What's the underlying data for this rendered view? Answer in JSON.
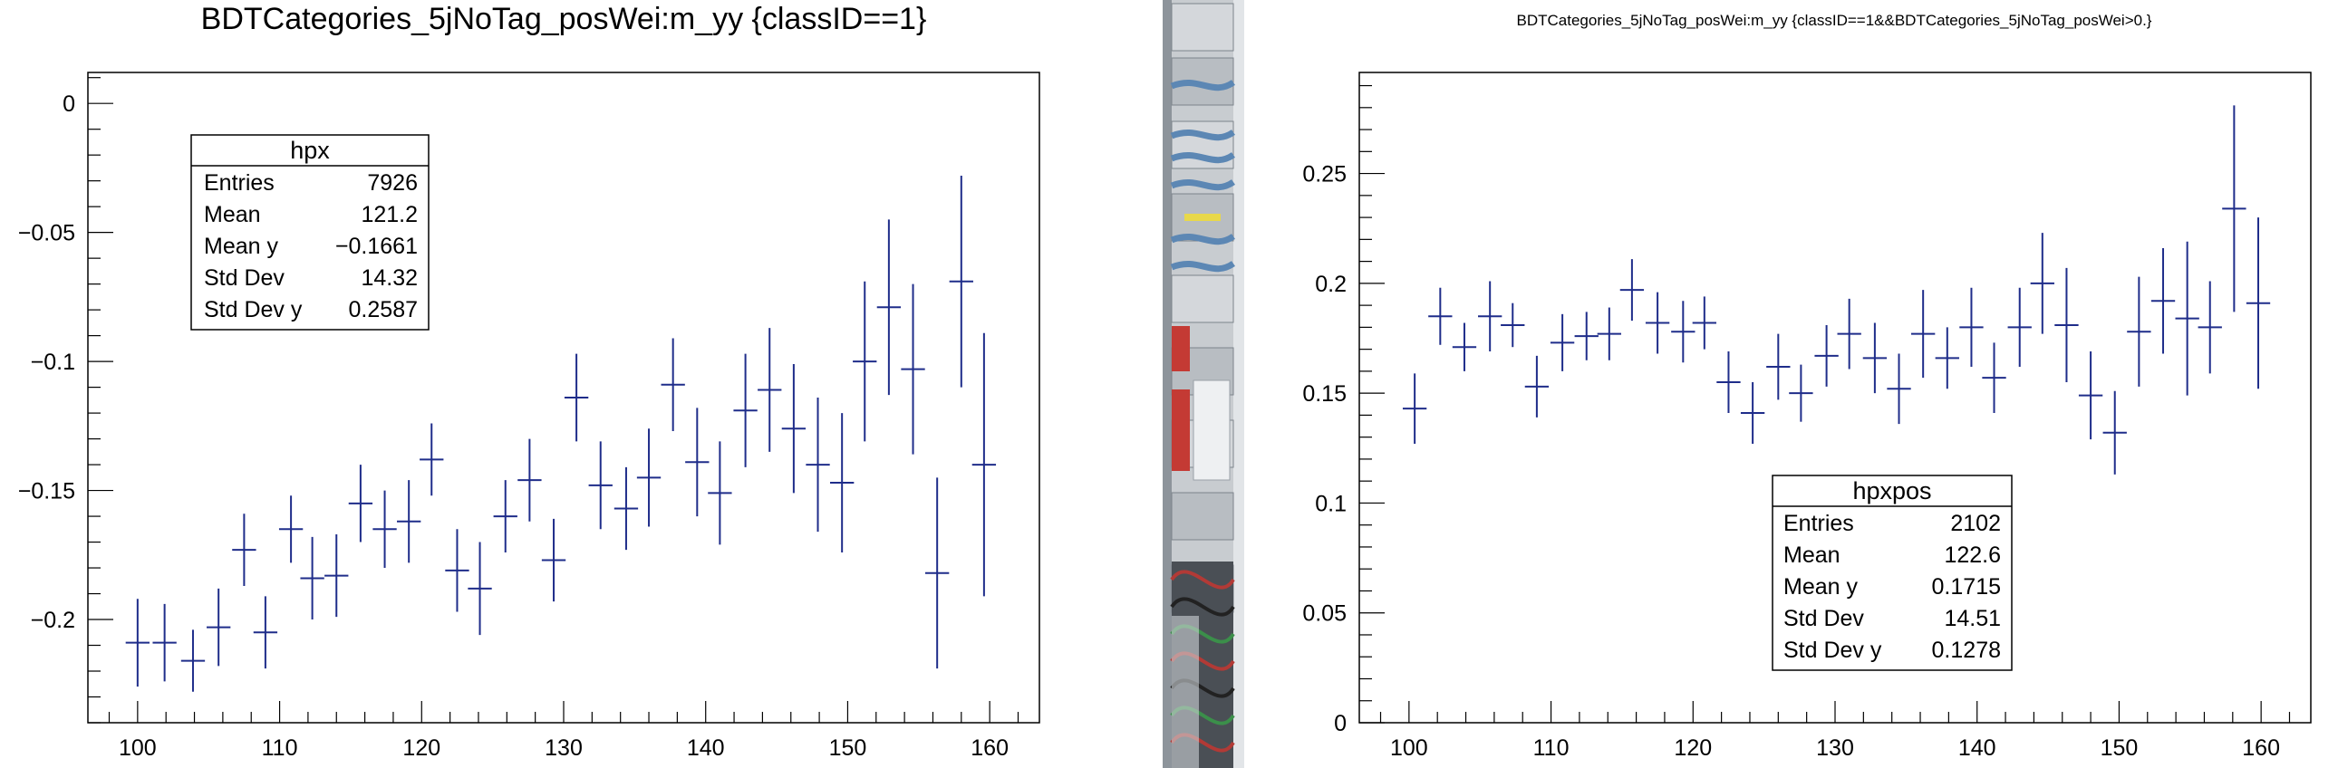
{
  "chart_data": [
    {
      "type": "scatter",
      "title": "BDTCategories_5jNoTag_posWei:m_yy {classID==1}",
      "xlabel": "",
      "ylabel": "",
      "xlim": [
        96.5,
        163.5
      ],
      "ylim": [
        -0.24,
        0.012
      ],
      "xticks": [
        100,
        110,
        120,
        130,
        140,
        150,
        160
      ],
      "yticks": [
        0,
        -0.05,
        -0.1,
        -0.15,
        -0.2
      ],
      "ytick_labels": [
        "0",
        "−0.05",
        "−0.1",
        "−0.15",
        "−0.2"
      ],
      "grid": false,
      "color": "#1f2d8a",
      "x_half_width": 0.84,
      "points": [
        [
          100.0,
          -0.209,
          0.017
        ],
        [
          101.9,
          -0.209,
          0.015
        ],
        [
          103.9,
          -0.216,
          0.012
        ],
        [
          105.7,
          -0.203,
          0.015
        ],
        [
          107.5,
          -0.173,
          0.014
        ],
        [
          109.0,
          -0.205,
          0.014
        ],
        [
          110.8,
          -0.165,
          0.013
        ],
        [
          112.3,
          -0.184,
          0.016
        ],
        [
          114.0,
          -0.183,
          0.016
        ],
        [
          115.7,
          -0.155,
          0.015
        ],
        [
          117.4,
          -0.165,
          0.015
        ],
        [
          119.1,
          -0.162,
          0.016
        ],
        [
          120.7,
          -0.138,
          0.014
        ],
        [
          122.5,
          -0.181,
          0.016
        ],
        [
          124.1,
          -0.188,
          0.018
        ],
        [
          125.9,
          -0.16,
          0.014
        ],
        [
          127.6,
          -0.146,
          0.016
        ],
        [
          129.3,
          -0.177,
          0.016
        ],
        [
          130.9,
          -0.114,
          0.017
        ],
        [
          132.6,
          -0.148,
          0.017
        ],
        [
          134.4,
          -0.157,
          0.016
        ],
        [
          136.0,
          -0.145,
          0.019
        ],
        [
          137.7,
          -0.109,
          0.018
        ],
        [
          139.4,
          -0.139,
          0.021
        ],
        [
          141.0,
          -0.151,
          0.02
        ],
        [
          142.8,
          -0.119,
          0.022
        ],
        [
          144.5,
          -0.111,
          0.024
        ],
        [
          146.2,
          -0.126,
          0.025
        ],
        [
          147.9,
          -0.14,
          0.026
        ],
        [
          149.6,
          -0.147,
          0.027
        ],
        [
          151.2,
          -0.1,
          0.031
        ],
        [
          152.9,
          -0.079,
          0.034
        ],
        [
          154.6,
          -0.103,
          0.033
        ],
        [
          156.3,
          -0.182,
          0.037
        ],
        [
          158.0,
          -0.069,
          0.041
        ],
        [
          159.6,
          -0.14,
          0.051
        ]
      ],
      "stats": {
        "name": "hpx",
        "rows": [
          {
            "label": "Entries",
            "value": "7926"
          },
          {
            "label": "Mean",
            "value": "121.2"
          },
          {
            "label": "Mean y",
            "value": "−0.1661"
          },
          {
            "label": "Std Dev",
            "value": "14.32"
          },
          {
            "label": "Std Dev y",
            "value": "0.2587"
          }
        ]
      }
    },
    {
      "type": "scatter",
      "title": "BDTCategories_5jNoTag_posWei:m_yy {classID==1&&BDTCategories_5jNoTag_posWei>0.}",
      "xlabel": "",
      "ylabel": "",
      "xlim": [
        96.5,
        163.5
      ],
      "ylim": [
        0,
        0.296
      ],
      "xticks": [
        100,
        110,
        120,
        130,
        140,
        150,
        160
      ],
      "yticks": [
        0,
        0.05,
        0.1,
        0.15,
        0.2,
        0.25
      ],
      "ytick_labels": [
        "0",
        "0.05",
        "0.1",
        "0.15",
        "0.2",
        "0.25"
      ],
      "grid": false,
      "color": "#1f2d8a",
      "x_half_width": 0.84,
      "points": [
        [
          100.4,
          0.143,
          0.016
        ],
        [
          102.2,
          0.185,
          0.013
        ],
        [
          103.9,
          0.171,
          0.011
        ],
        [
          105.7,
          0.185,
          0.016
        ],
        [
          107.3,
          0.181,
          0.01
        ],
        [
          109.0,
          0.153,
          0.014
        ],
        [
          110.8,
          0.173,
          0.013
        ],
        [
          112.5,
          0.176,
          0.011
        ],
        [
          114.1,
          0.177,
          0.012
        ],
        [
          115.7,
          0.197,
          0.014
        ],
        [
          117.5,
          0.182,
          0.014
        ],
        [
          119.3,
          0.178,
          0.014
        ],
        [
          120.8,
          0.182,
          0.012
        ],
        [
          122.5,
          0.155,
          0.014
        ],
        [
          124.2,
          0.141,
          0.014
        ],
        [
          126.0,
          0.162,
          0.015
        ],
        [
          127.6,
          0.15,
          0.013
        ],
        [
          129.4,
          0.167,
          0.014
        ],
        [
          131.0,
          0.177,
          0.016
        ],
        [
          132.8,
          0.166,
          0.016
        ],
        [
          134.5,
          0.152,
          0.016
        ],
        [
          136.2,
          0.177,
          0.02
        ],
        [
          137.9,
          0.166,
          0.014
        ],
        [
          139.6,
          0.18,
          0.018
        ],
        [
          141.2,
          0.157,
          0.016
        ],
        [
          143.0,
          0.18,
          0.018
        ],
        [
          144.6,
          0.2,
          0.023
        ],
        [
          146.3,
          0.181,
          0.026
        ],
        [
          148.0,
          0.149,
          0.02
        ],
        [
          149.7,
          0.132,
          0.019
        ],
        [
          151.4,
          0.178,
          0.025
        ],
        [
          153.1,
          0.192,
          0.024
        ],
        [
          154.8,
          0.184,
          0.035
        ],
        [
          156.4,
          0.18,
          0.021
        ],
        [
          158.1,
          0.234,
          0.047
        ],
        [
          159.8,
          0.191,
          0.039
        ]
      ],
      "stats": {
        "name": "hpxpos",
        "rows": [
          {
            "label": "Entries",
            "value": "2102"
          },
          {
            "label": "Mean",
            "value": "122.6"
          },
          {
            "label": "Mean y",
            "value": "0.1715"
          },
          {
            "label": "Std Dev",
            "value": "14.51"
          },
          {
            "label": "Std Dev y",
            "value": "0.1278"
          }
        ]
      }
    }
  ],
  "photo_strip": {
    "description_icon": "server-rack-photo",
    "colors": [
      "#c8ccd0",
      "#5c87b4",
      "#9aa1a8",
      "#c43a34",
      "#6c7279"
    ]
  }
}
